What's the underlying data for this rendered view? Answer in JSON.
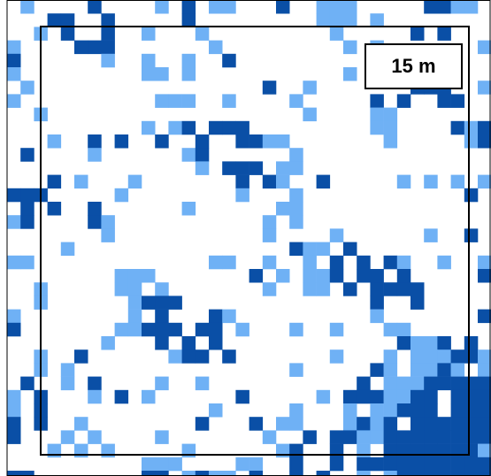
{
  "scale_label": "15 m"
}
